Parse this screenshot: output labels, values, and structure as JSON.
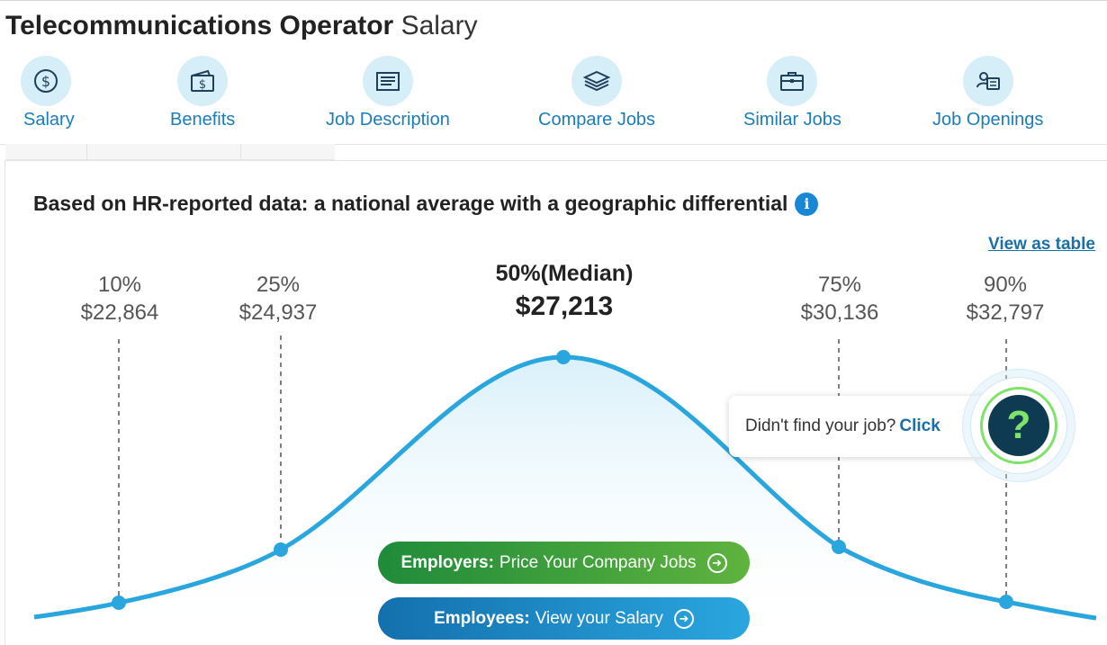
{
  "page": {
    "title_job": "Telecommunications Operator",
    "title_suffix": "Salary"
  },
  "nav": [
    {
      "label": "Salary",
      "icon": "dollar-coin-icon"
    },
    {
      "label": "Benefits",
      "icon": "wallet-icon"
    },
    {
      "label": "Job Description",
      "icon": "document-icon"
    },
    {
      "label": "Compare Jobs",
      "icon": "layers-icon"
    },
    {
      "label": "Similar Jobs",
      "icon": "briefcase-icon"
    },
    {
      "label": "Job Openings",
      "icon": "person-card-icon"
    }
  ],
  "headline": "Based on HR-reported data: a national average with a geographic differential",
  "view_table_label": "View as table",
  "percentiles": [
    {
      "label": "10%",
      "value": "$22,864"
    },
    {
      "label": "25%",
      "value": "$24,937"
    },
    {
      "label": "50%(Median)",
      "value": "$27,213"
    },
    {
      "label": "75%",
      "value": "$30,136"
    },
    {
      "label": "90%",
      "value": "$32,797"
    }
  ],
  "chart_data": {
    "type": "line",
    "categories": [
      "10%",
      "25%",
      "50%(Median)",
      "75%",
      "90%"
    ],
    "values": [
      22864,
      24937,
      27213,
      30136,
      32797
    ]
  },
  "cta": {
    "employers_bold": "Employers:",
    "employers_text": "Price Your Company Jobs",
    "employees_bold": "Employees:",
    "employees_text": "View your Salary"
  },
  "help": {
    "text": "Didn't find your job?",
    "link": "Click",
    "icon_glyph": "?"
  },
  "colors": {
    "accent_blue": "#1a7dbb",
    "curve_blue": "#2aa6df",
    "employers_green": "#1f8b3a",
    "employees_blue": "#1370ad",
    "help_green": "#7fe36a",
    "help_navy": "#0f3b52"
  }
}
